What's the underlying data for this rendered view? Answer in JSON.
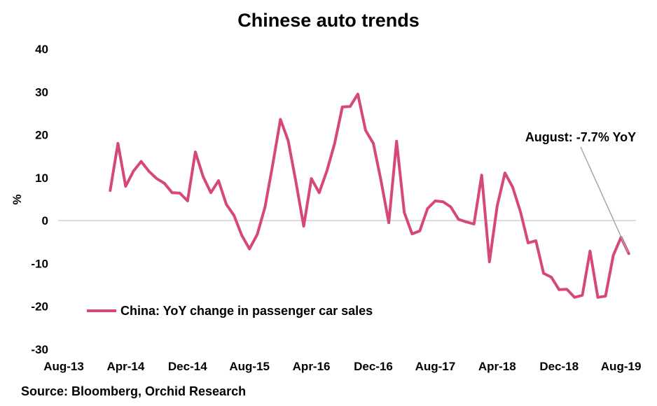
{
  "colors": {
    "series": "#D6487A",
    "zero_line": "#d0d0d0",
    "leader_line": "#a6a6a6"
  },
  "chart_data": {
    "type": "line",
    "title": "Chinese auto trends",
    "ylabel": "%",
    "xlabel": "",
    "ylim": [
      -30,
      40
    ],
    "yticks": [
      40,
      30,
      20,
      10,
      0,
      -10,
      -20,
      -30
    ],
    "xticks": [
      {
        "label": "Aug-13",
        "month": 0
      },
      {
        "label": "Apr-14",
        "month": 8
      },
      {
        "label": "Dec-14",
        "month": 16
      },
      {
        "label": "Aug-15",
        "month": 24
      },
      {
        "label": "Apr-16",
        "month": 32
      },
      {
        "label": "Dec-16",
        "month": 40
      },
      {
        "label": "Aug-17",
        "month": 48
      },
      {
        "label": "Apr-18",
        "month": 56
      },
      {
        "label": "Dec-18",
        "month": 64
      },
      {
        "label": "Aug-19",
        "month": 72
      }
    ],
    "grid": false,
    "legend_position": "bottom-left",
    "series": [
      {
        "name": "China: YoY change in passenger car sales",
        "start_month": 6,
        "values": [
          7,
          18,
          8,
          11.5,
          13.8,
          11.5,
          9.8,
          8.7,
          6.5,
          6.4,
          4.6,
          16,
          10.3,
          6.5,
          9.3,
          3.8,
          1.2,
          -3.4,
          -6.6,
          -3.2,
          3.1,
          13.1,
          23.6,
          18.6,
          9,
          -1.3,
          9.8,
          6.5,
          11.6,
          18,
          26.5,
          26.6,
          29.5,
          21,
          18,
          9.3,
          -0.5,
          18.5,
          1.9,
          -3.1,
          -2.4,
          2.8,
          4.6,
          4.4,
          3.2,
          0.3,
          -0.3,
          -0.8,
          10.6,
          -9.6,
          3.4,
          11.1,
          7.8,
          2.1,
          -5.2,
          -4.7,
          -12.3,
          -13.2,
          -16.1,
          -16,
          -17.9,
          -17.4,
          -7.1,
          -17.9,
          -17.6,
          -8.1,
          -3.9,
          -7.7
        ]
      }
    ],
    "annotation": "August: -7.7% YoY"
  },
  "source": "Source: Bloomberg, Orchid Research"
}
